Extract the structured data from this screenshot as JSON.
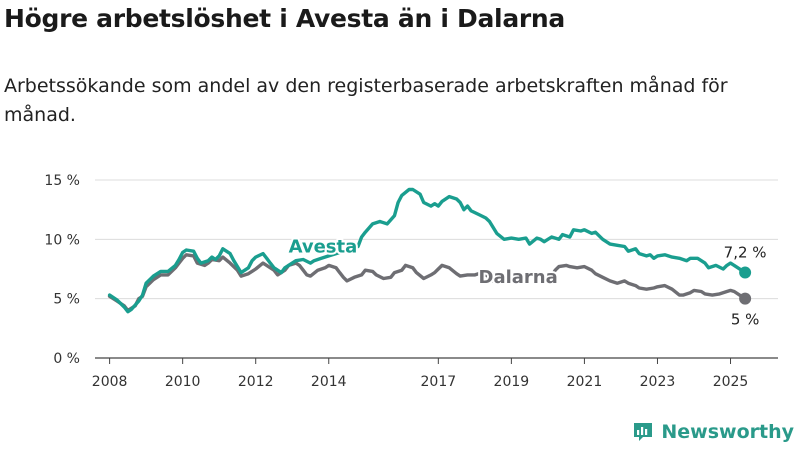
{
  "title": "Högre arbetslöshet i Avesta än i Dalarna",
  "subtitle": "Arbetssökande som andel av den registerbaserade arbetskraften månad för månad.",
  "brand": {
    "name": "Newsworthy",
    "icon": "newsworthy-logo-icon",
    "color": "#2a9a8a"
  },
  "chart_data": {
    "type": "line",
    "title": "Högre arbetslöshet i Avesta än i Dalarna",
    "subtitle": "Arbetssökande som andel av den registerbaserade arbetskraften månad för månad.",
    "xlabel": "",
    "ylabel": "",
    "xlim": [
      2007.6,
      2026.3
    ],
    "ylim": [
      0,
      15
    ],
    "grid": true,
    "x_ticks": [
      {
        "value": 2008,
        "label": "2008"
      },
      {
        "value": 2010,
        "label": "2010"
      },
      {
        "value": 2012,
        "label": "2012"
      },
      {
        "value": 2014,
        "label": "2014"
      },
      {
        "value": 2017,
        "label": "2017"
      },
      {
        "value": 2019,
        "label": "2019"
      },
      {
        "value": 2021,
        "label": "2021"
      },
      {
        "value": 2023,
        "label": "2023"
      },
      {
        "value": 2025,
        "label": "2025"
      }
    ],
    "y_ticks": [
      {
        "value": 0,
        "label": "0 %"
      },
      {
        "value": 5,
        "label": "5 %"
      },
      {
        "value": 10,
        "label": "10 %"
      },
      {
        "value": 15,
        "label": "15 %"
      }
    ],
    "series": [
      {
        "name": "Avesta",
        "color": "#1a9e8f",
        "label_at": [
          2012.9,
          8.9
        ],
        "end_label": "7,2 %",
        "points": [
          [
            2008.0,
            5.3
          ],
          [
            2008.2,
            4.9
          ],
          [
            2008.4,
            4.3
          ],
          [
            2008.5,
            3.9
          ],
          [
            2008.6,
            4.1
          ],
          [
            2008.8,
            4.8
          ],
          [
            2008.9,
            5.3
          ],
          [
            2009.0,
            6.3
          ],
          [
            2009.2,
            6.9
          ],
          [
            2009.4,
            7.3
          ],
          [
            2009.6,
            7.3
          ],
          [
            2009.8,
            7.8
          ],
          [
            2009.9,
            8.3
          ],
          [
            2010.0,
            8.9
          ],
          [
            2010.1,
            9.1
          ],
          [
            2010.3,
            9.0
          ],
          [
            2010.4,
            8.4
          ],
          [
            2010.5,
            8.0
          ],
          [
            2010.7,
            8.2
          ],
          [
            2010.8,
            8.5
          ],
          [
            2010.9,
            8.3
          ],
          [
            2011.0,
            8.6
          ],
          [
            2011.1,
            9.2
          ],
          [
            2011.3,
            8.8
          ],
          [
            2011.4,
            8.2
          ],
          [
            2011.6,
            7.2
          ],
          [
            2011.8,
            7.6
          ],
          [
            2011.9,
            8.2
          ],
          [
            2012.0,
            8.5
          ],
          [
            2012.2,
            8.8
          ],
          [
            2012.3,
            8.4
          ],
          [
            2012.4,
            8.0
          ],
          [
            2012.5,
            7.6
          ],
          [
            2012.7,
            7.2
          ],
          [
            2012.8,
            7.6
          ],
          [
            2013.0,
            8.0
          ],
          [
            2013.1,
            8.2
          ],
          [
            2013.3,
            8.3
          ],
          [
            2013.5,
            8.0
          ],
          [
            2013.6,
            8.2
          ],
          [
            2013.8,
            8.4
          ],
          [
            2014.0,
            8.6
          ],
          [
            2014.2,
            8.8
          ],
          [
            2014.4,
            9.0
          ],
          [
            2014.6,
            9.2
          ],
          [
            2014.8,
            9.4
          ],
          [
            2014.9,
            10.2
          ],
          [
            2015.0,
            10.6
          ],
          [
            2015.2,
            11.3
          ],
          [
            2015.4,
            11.5
          ],
          [
            2015.6,
            11.3
          ],
          [
            2015.8,
            12.0
          ],
          [
            2015.9,
            13.1
          ],
          [
            2016.0,
            13.7
          ],
          [
            2016.2,
            14.2
          ],
          [
            2016.3,
            14.2
          ],
          [
            2016.5,
            13.8
          ],
          [
            2016.6,
            13.1
          ],
          [
            2016.8,
            12.8
          ],
          [
            2016.9,
            13.0
          ],
          [
            2017.0,
            12.8
          ],
          [
            2017.1,
            13.2
          ],
          [
            2017.3,
            13.6
          ],
          [
            2017.5,
            13.4
          ],
          [
            2017.6,
            13.1
          ],
          [
            2017.7,
            12.5
          ],
          [
            2017.8,
            12.8
          ],
          [
            2017.9,
            12.4
          ],
          [
            2018.1,
            12.1
          ],
          [
            2018.3,
            11.8
          ],
          [
            2018.4,
            11.5
          ],
          [
            2018.6,
            10.5
          ],
          [
            2018.8,
            10.0
          ],
          [
            2019.0,
            10.1
          ],
          [
            2019.2,
            10.0
          ],
          [
            2019.4,
            10.1
          ],
          [
            2019.5,
            9.6
          ],
          [
            2019.7,
            10.1
          ],
          [
            2019.8,
            10.0
          ],
          [
            2019.9,
            9.8
          ],
          [
            2020.1,
            10.2
          ],
          [
            2020.3,
            10.0
          ],
          [
            2020.4,
            10.4
          ],
          [
            2020.6,
            10.2
          ],
          [
            2020.7,
            10.8
          ],
          [
            2020.9,
            10.7
          ],
          [
            2021.0,
            10.8
          ],
          [
            2021.2,
            10.5
          ],
          [
            2021.3,
            10.6
          ],
          [
            2021.5,
            10.0
          ],
          [
            2021.7,
            9.6
          ],
          [
            2021.9,
            9.5
          ],
          [
            2022.1,
            9.4
          ],
          [
            2022.2,
            9.0
          ],
          [
            2022.4,
            9.2
          ],
          [
            2022.5,
            8.8
          ],
          [
            2022.7,
            8.6
          ],
          [
            2022.8,
            8.7
          ],
          [
            2022.9,
            8.4
          ],
          [
            2023.0,
            8.6
          ],
          [
            2023.2,
            8.7
          ],
          [
            2023.4,
            8.5
          ],
          [
            2023.6,
            8.4
          ],
          [
            2023.8,
            8.2
          ],
          [
            2023.9,
            8.4
          ],
          [
            2024.1,
            8.4
          ],
          [
            2024.3,
            8.0
          ],
          [
            2024.4,
            7.6
          ],
          [
            2024.6,
            7.8
          ],
          [
            2024.8,
            7.5
          ],
          [
            2024.9,
            7.8
          ],
          [
            2025.0,
            8.0
          ],
          [
            2025.1,
            7.8
          ],
          [
            2025.3,
            7.4
          ],
          [
            2025.4,
            7.2
          ]
        ]
      },
      {
        "name": "Dalarna",
        "color": "#6e6e73",
        "label_at": [
          2018.1,
          6.3
        ],
        "end_label": "5 %",
        "points": [
          [
            2008.0,
            5.2
          ],
          [
            2008.2,
            4.8
          ],
          [
            2008.4,
            4.4
          ],
          [
            2008.5,
            4.0
          ],
          [
            2008.7,
            4.4
          ],
          [
            2008.8,
            5.0
          ],
          [
            2008.9,
            5.2
          ],
          [
            2009.0,
            6.0
          ],
          [
            2009.2,
            6.6
          ],
          [
            2009.4,
            7.0
          ],
          [
            2009.6,
            7.0
          ],
          [
            2009.8,
            7.6
          ],
          [
            2009.9,
            8.0
          ],
          [
            2010.0,
            8.4
          ],
          [
            2010.1,
            8.7
          ],
          [
            2010.3,
            8.6
          ],
          [
            2010.4,
            8.0
          ],
          [
            2010.6,
            7.8
          ],
          [
            2010.7,
            8.0
          ],
          [
            2010.8,
            8.3
          ],
          [
            2011.0,
            8.2
          ],
          [
            2011.1,
            8.5
          ],
          [
            2011.3,
            8.0
          ],
          [
            2011.5,
            7.4
          ],
          [
            2011.6,
            6.9
          ],
          [
            2011.8,
            7.1
          ],
          [
            2012.0,
            7.5
          ],
          [
            2012.2,
            8.0
          ],
          [
            2012.3,
            7.8
          ],
          [
            2012.5,
            7.4
          ],
          [
            2012.6,
            7.0
          ],
          [
            2012.8,
            7.4
          ],
          [
            2012.9,
            7.8
          ],
          [
            2013.1,
            8.0
          ],
          [
            2013.2,
            7.8
          ],
          [
            2013.3,
            7.4
          ],
          [
            2013.4,
            7.0
          ],
          [
            2013.5,
            6.9
          ],
          [
            2013.7,
            7.4
          ],
          [
            2013.9,
            7.6
          ],
          [
            2014.0,
            7.8
          ],
          [
            2014.2,
            7.6
          ],
          [
            2014.3,
            7.2
          ],
          [
            2014.4,
            6.8
          ],
          [
            2014.5,
            6.5
          ],
          [
            2014.7,
            6.8
          ],
          [
            2014.9,
            7.0
          ],
          [
            2015.0,
            7.4
          ],
          [
            2015.2,
            7.3
          ],
          [
            2015.3,
            7.0
          ],
          [
            2015.5,
            6.7
          ],
          [
            2015.7,
            6.8
          ],
          [
            2015.8,
            7.2
          ],
          [
            2016.0,
            7.4
          ],
          [
            2016.1,
            7.8
          ],
          [
            2016.3,
            7.6
          ],
          [
            2016.4,
            7.2
          ],
          [
            2016.6,
            6.7
          ],
          [
            2016.8,
            7.0
          ],
          [
            2016.9,
            7.2
          ],
          [
            2017.0,
            7.5
          ],
          [
            2017.1,
            7.8
          ],
          [
            2017.3,
            7.6
          ],
          [
            2017.5,
            7.1
          ],
          [
            2017.6,
            6.9
          ],
          [
            2017.8,
            7.0
          ],
          [
            2018.0,
            7.0
          ],
          [
            2018.1,
            7.1
          ],
          [
            2018.3,
            7.0
          ],
          [
            2018.4,
            6.8
          ],
          [
            2018.5,
            6.5
          ],
          [
            2020.1,
            6.9
          ],
          [
            2020.2,
            7.4
          ],
          [
            2020.3,
            7.7
          ],
          [
            2020.5,
            7.8
          ],
          [
            2020.6,
            7.7
          ],
          [
            2020.8,
            7.6
          ],
          [
            2021.0,
            7.7
          ],
          [
            2021.2,
            7.4
          ],
          [
            2021.3,
            7.1
          ],
          [
            2021.5,
            6.8
          ],
          [
            2021.7,
            6.5
          ],
          [
            2021.9,
            6.3
          ],
          [
            2022.1,
            6.5
          ],
          [
            2022.2,
            6.3
          ],
          [
            2022.4,
            6.1
          ],
          [
            2022.5,
            5.9
          ],
          [
            2022.7,
            5.8
          ],
          [
            2022.9,
            5.9
          ],
          [
            2023.0,
            6.0
          ],
          [
            2023.2,
            6.1
          ],
          [
            2023.4,
            5.8
          ],
          [
            2023.6,
            5.3
          ],
          [
            2023.7,
            5.3
          ],
          [
            2023.9,
            5.5
          ],
          [
            2024.0,
            5.7
          ],
          [
            2024.2,
            5.6
          ],
          [
            2024.3,
            5.4
          ],
          [
            2024.5,
            5.3
          ],
          [
            2024.7,
            5.4
          ],
          [
            2024.9,
            5.6
          ],
          [
            2025.0,
            5.7
          ],
          [
            2025.1,
            5.6
          ],
          [
            2025.3,
            5.2
          ],
          [
            2025.4,
            5.0
          ]
        ]
      }
    ]
  }
}
